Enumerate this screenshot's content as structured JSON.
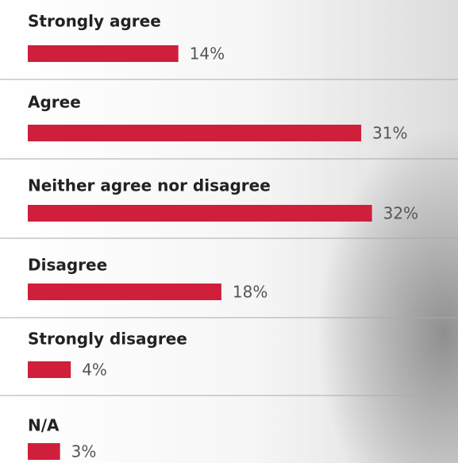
{
  "chart_data": {
    "type": "bar",
    "orientation": "horizontal",
    "categories": [
      "Strongly agree",
      "Agree",
      "Neither agree nor disagree",
      "Disagree",
      "Strongly disagree",
      "N/A"
    ],
    "values": [
      14,
      31,
      32,
      18,
      4,
      3
    ],
    "value_labels": [
      "14%",
      "31%",
      "32%",
      "18%",
      "4%",
      "3%"
    ],
    "color": "#cf1f3b"
  }
}
